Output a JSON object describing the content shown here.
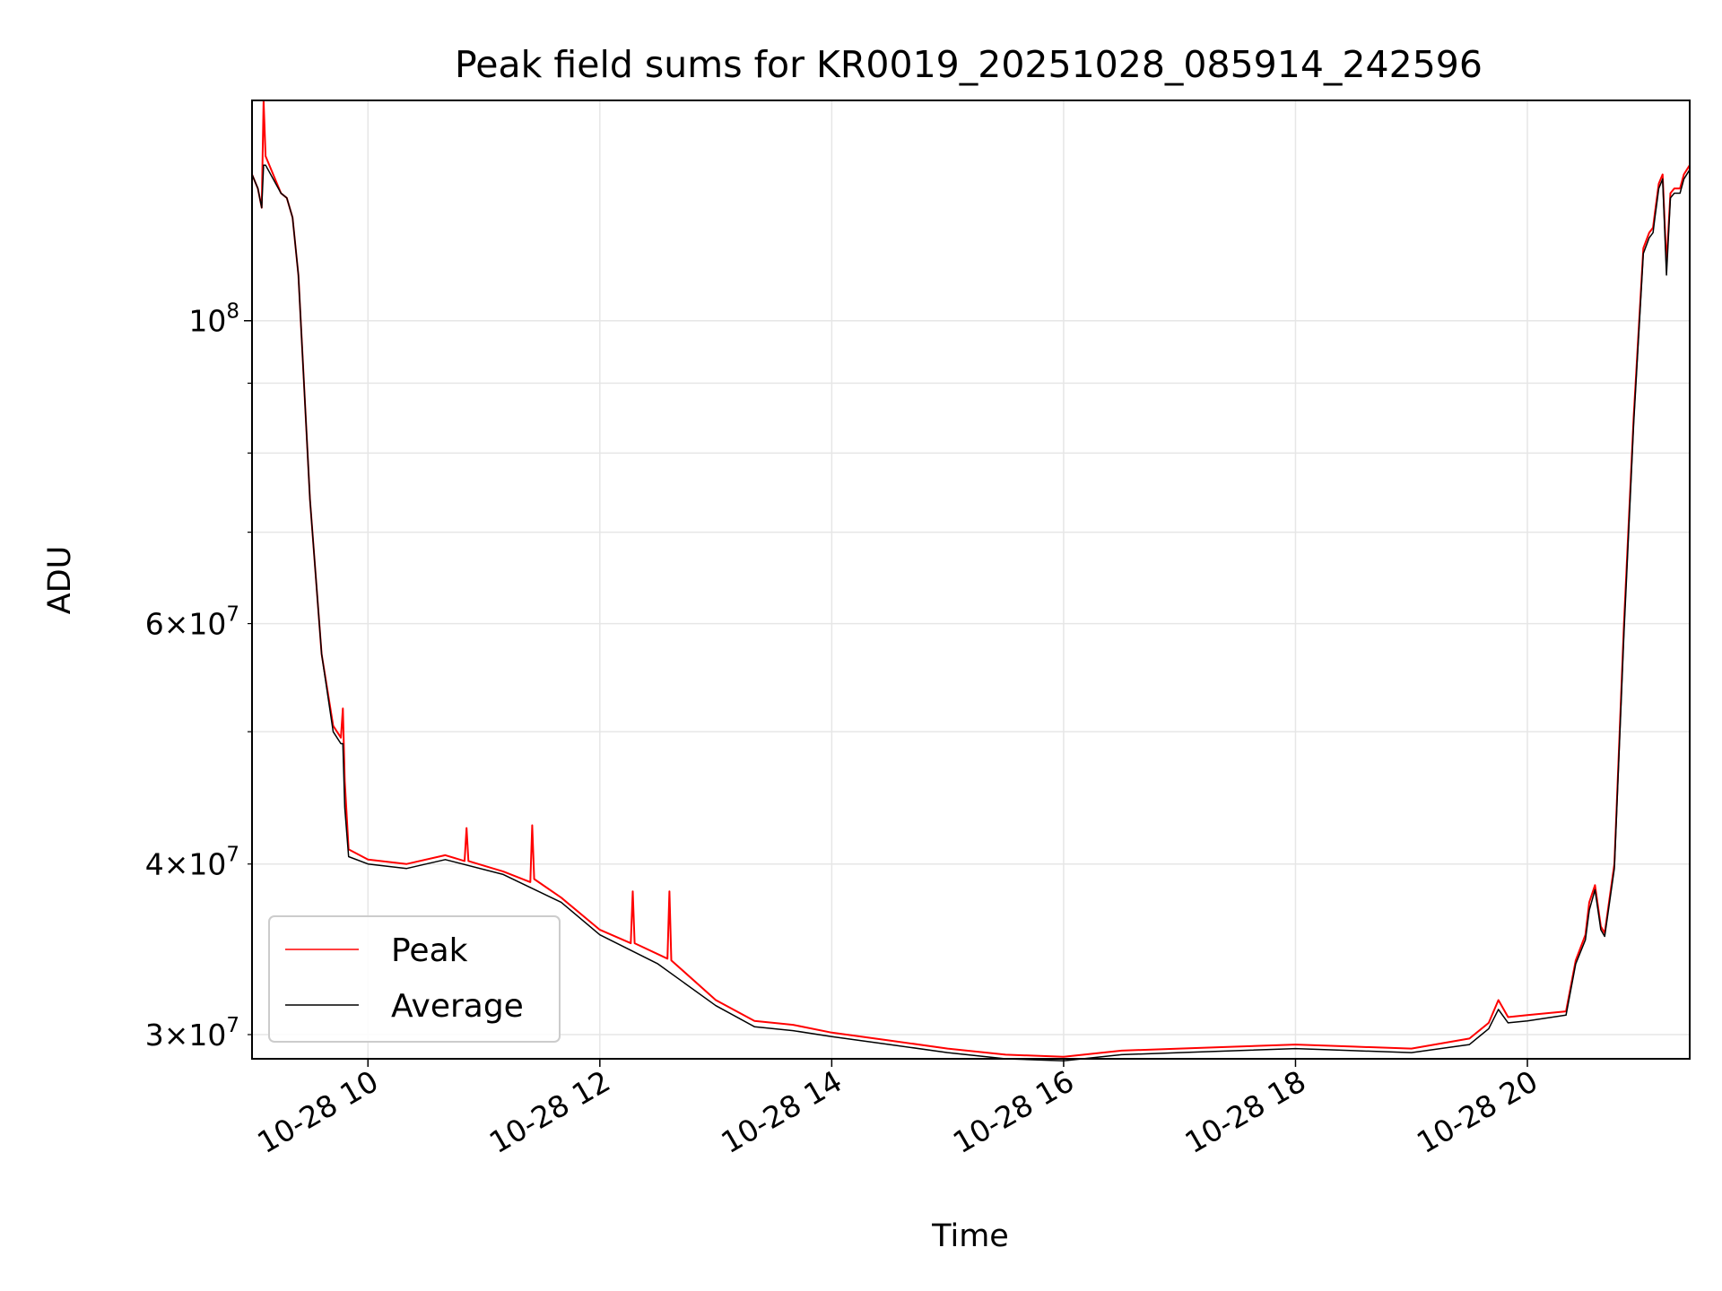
{
  "chart_data": {
    "type": "line",
    "title": "Peak field sums for KR0019_20251028_085914_242596",
    "xlabel": "Time",
    "ylabel": "ADU",
    "yscale": "log",
    "grid": true,
    "legend_position": "lower-left",
    "xlim": [
      "2025-10-28 09:00",
      "2025-10-28 21:24"
    ],
    "ylim": [
      28800000,
      145000000
    ],
    "x_ticks": [
      "10-28 10",
      "10-28 12",
      "10-28 14",
      "10-28 16",
      "10-28 18",
      "10-28 20"
    ],
    "y_ticks": [
      {
        "value": 30000000,
        "mantissa": "3",
        "exponent": "7"
      },
      {
        "value": 40000000,
        "mantissa": "4",
        "exponent": "7"
      },
      {
        "value": 60000000,
        "mantissa": "6",
        "exponent": "7"
      },
      {
        "value": 100000000,
        "mantissa": "",
        "exponent": "8"
      }
    ],
    "series": [
      {
        "name": "Peak",
        "color": "#ff0000",
        "x": [
          "2025-10-28 09:00",
          "2025-10-28 09:03",
          "2025-10-28 09:05",
          "2025-10-28 09:06",
          "2025-10-28 09:07",
          "2025-10-28 09:15",
          "2025-10-28 09:18",
          "2025-10-28 09:21",
          "2025-10-28 09:24",
          "2025-10-28 09:30",
          "2025-10-28 09:36",
          "2025-10-28 09:42",
          "2025-10-28 09:46",
          "2025-10-28 09:47",
          "2025-10-28 09:48",
          "2025-10-28 09:50",
          "2025-10-28 10:00",
          "2025-10-28 10:20",
          "2025-10-28 10:40",
          "2025-10-28 10:50",
          "2025-10-28 10:51",
          "2025-10-28 10:52",
          "2025-10-28 11:10",
          "2025-10-28 11:24",
          "2025-10-28 11:25",
          "2025-10-28 11:26",
          "2025-10-28 11:40",
          "2025-10-28 12:00",
          "2025-10-28 12:16",
          "2025-10-28 12:17",
          "2025-10-28 12:18",
          "2025-10-28 12:35",
          "2025-10-28 12:36",
          "2025-10-28 12:37",
          "2025-10-28 13:00",
          "2025-10-28 13:20",
          "2025-10-28 13:40",
          "2025-10-28 14:00",
          "2025-10-28 14:30",
          "2025-10-28 15:00",
          "2025-10-28 15:30",
          "2025-10-28 16:00",
          "2025-10-28 16:30",
          "2025-10-28 17:00",
          "2025-10-28 17:30",
          "2025-10-28 18:00",
          "2025-10-28 18:30",
          "2025-10-28 19:00",
          "2025-10-28 19:30",
          "2025-10-28 19:40",
          "2025-10-28 19:45",
          "2025-10-28 19:50",
          "2025-10-28 20:00",
          "2025-10-28 20:20",
          "2025-10-28 20:25",
          "2025-10-28 20:30",
          "2025-10-28 20:32",
          "2025-10-28 20:35",
          "2025-10-28 20:38",
          "2025-10-28 20:40",
          "2025-10-28 20:45",
          "2025-10-28 20:50",
          "2025-10-28 20:55",
          "2025-10-28 21:00",
          "2025-10-28 21:03",
          "2025-10-28 21:05",
          "2025-10-28 21:06",
          "2025-10-28 21:07",
          "2025-10-28 21:08",
          "2025-10-28 21:10",
          "2025-10-28 21:12",
          "2025-10-28 21:14",
          "2025-10-28 21:16",
          "2025-10-28 21:19",
          "2025-10-28 21:21",
          "2025-10-28 21:24"
        ],
        "y": [
          128000000,
          125000000,
          121000000,
          145000000,
          132000000,
          124000000,
          123000000,
          119000000,
          108000000,
          74000000,
          57000000,
          50500000,
          49500000,
          52000000,
          46000000,
          41000000,
          40300000,
          40000000,
          40600000,
          40200000,
          42500000,
          40200000,
          39500000,
          38800000,
          42700000,
          39000000,
          37800000,
          35800000,
          35000000,
          38200000,
          35000000,
          34100000,
          38200000,
          34000000,
          31800000,
          30700000,
          30500000,
          30100000,
          29700000,
          29300000,
          29000000,
          28900000,
          29200000,
          29300000,
          29400000,
          29500000,
          29400000,
          29300000,
          29800000,
          30600000,
          31800000,
          30900000,
          31000000,
          31200000,
          34000000,
          35500000,
          37500000,
          38600000,
          36000000,
          35600000,
          40000000,
          60000000,
          85000000,
          113000000,
          116000000,
          117000000,
          120000000,
          123000000,
          126000000,
          128000000,
          110000000,
          124000000,
          125000000,
          125000000,
          128000000,
          130000000
        ]
      },
      {
        "name": "Average",
        "color": "#000000",
        "x": [
          "2025-10-28 09:00",
          "2025-10-28 09:03",
          "2025-10-28 09:05",
          "2025-10-28 09:06",
          "2025-10-28 09:07",
          "2025-10-28 09:15",
          "2025-10-28 09:18",
          "2025-10-28 09:21",
          "2025-10-28 09:24",
          "2025-10-28 09:30",
          "2025-10-28 09:36",
          "2025-10-28 09:42",
          "2025-10-28 09:46",
          "2025-10-28 09:47",
          "2025-10-28 09:48",
          "2025-10-28 09:50",
          "2025-10-28 10:00",
          "2025-10-28 10:20",
          "2025-10-28 10:40",
          "2025-10-28 11:10",
          "2025-10-28 11:40",
          "2025-10-28 12:00",
          "2025-10-28 12:30",
          "2025-10-28 13:00",
          "2025-10-28 13:20",
          "2025-10-28 13:40",
          "2025-10-28 14:00",
          "2025-10-28 14:30",
          "2025-10-28 15:00",
          "2025-10-28 15:30",
          "2025-10-28 16:00",
          "2025-10-28 16:30",
          "2025-10-28 17:00",
          "2025-10-28 17:30",
          "2025-10-28 18:00",
          "2025-10-28 18:30",
          "2025-10-28 19:00",
          "2025-10-28 19:30",
          "2025-10-28 19:40",
          "2025-10-28 19:45",
          "2025-10-28 19:50",
          "2025-10-28 20:00",
          "2025-10-28 20:20",
          "2025-10-28 20:25",
          "2025-10-28 20:30",
          "2025-10-28 20:32",
          "2025-10-28 20:35",
          "2025-10-28 20:38",
          "2025-10-28 20:40",
          "2025-10-28 20:45",
          "2025-10-28 20:50",
          "2025-10-28 20:55",
          "2025-10-28 21:00",
          "2025-10-28 21:03",
          "2025-10-28 21:05",
          "2025-10-28 21:06",
          "2025-10-28 21:07",
          "2025-10-28 21:08",
          "2025-10-28 21:10",
          "2025-10-28 21:12",
          "2025-10-28 21:14",
          "2025-10-28 21:16",
          "2025-10-28 21:19",
          "2025-10-28 21:21",
          "2025-10-28 21:24"
        ],
        "y": [
          128000000,
          125000000,
          121000000,
          130000000,
          130000000,
          124000000,
          123000000,
          119000000,
          108000000,
          74000000,
          57000000,
          50000000,
          49000000,
          49000000,
          44000000,
          40500000,
          40000000,
          39700000,
          40300000,
          39300000,
          37500000,
          35500000,
          33800000,
          31500000,
          30400000,
          30200000,
          29900000,
          29500000,
          29100000,
          28800000,
          28700000,
          29000000,
          29100000,
          29200000,
          29300000,
          29200000,
          29100000,
          29500000,
          30300000,
          31300000,
          30600000,
          30700000,
          31000000,
          33800000,
          35200000,
          37000000,
          38300000,
          35800000,
          35400000,
          39700000,
          59000000,
          84000000,
          112000000,
          115000000,
          116000000,
          119000000,
          122000000,
          125000000,
          127000000,
          108000000,
          123000000,
          124000000,
          124000000,
          127000000,
          129000000
        ]
      }
    ]
  }
}
